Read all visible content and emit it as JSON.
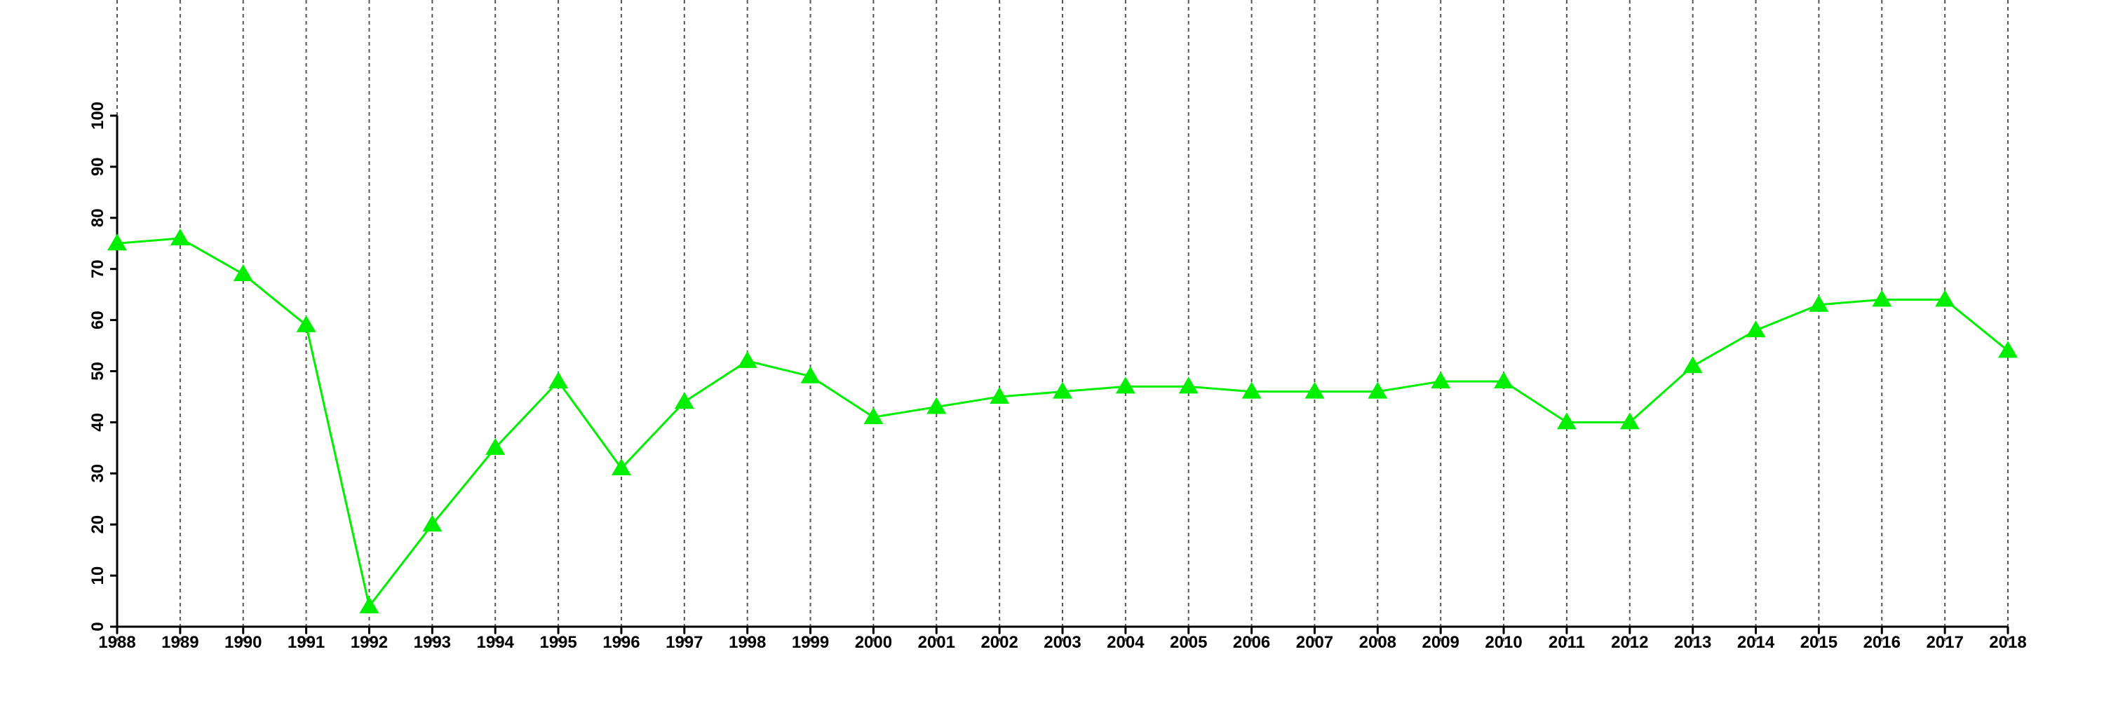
{
  "chart_data": {
    "type": "line",
    "title": "",
    "xlabel": "",
    "ylabel": "",
    "x": [
      1988,
      1989,
      1990,
      1991,
      1992,
      1993,
      1994,
      1995,
      1996,
      1997,
      1998,
      1999,
      2000,
      2001,
      2002,
      2003,
      2004,
      2005,
      2006,
      2007,
      2008,
      2009,
      2010,
      2011,
      2012,
      2013,
      2014,
      2015,
      2016,
      2017,
      2018
    ],
    "series": [
      {
        "values": [
          75,
          76,
          69,
          59,
          4,
          20,
          35,
          48,
          31,
          44,
          52,
          49,
          41,
          43,
          45,
          46,
          47,
          47,
          46,
          46,
          46,
          48,
          48,
          40,
          40,
          51,
          58,
          63,
          64,
          64,
          54
        ],
        "color": "#00ee00",
        "marker": "triangle"
      }
    ],
    "xlim": [
      1988,
      2018
    ],
    "ylim": [
      0,
      100
    ],
    "yticks": [
      0,
      10,
      20,
      30,
      40,
      50,
      60,
      70,
      80,
      90,
      100
    ],
    "xticks": [
      1988,
      1989,
      1990,
      1991,
      1992,
      1993,
      1994,
      1995,
      1996,
      1997,
      1998,
      1999,
      2000,
      2001,
      2002,
      2003,
      2004,
      2005,
      2006,
      2007,
      2008,
      2009,
      2010,
      2011,
      2012,
      2013,
      2014,
      2015,
      2016,
      2017,
      2018
    ],
    "grid": "vertical dashed",
    "legend": "none"
  }
}
